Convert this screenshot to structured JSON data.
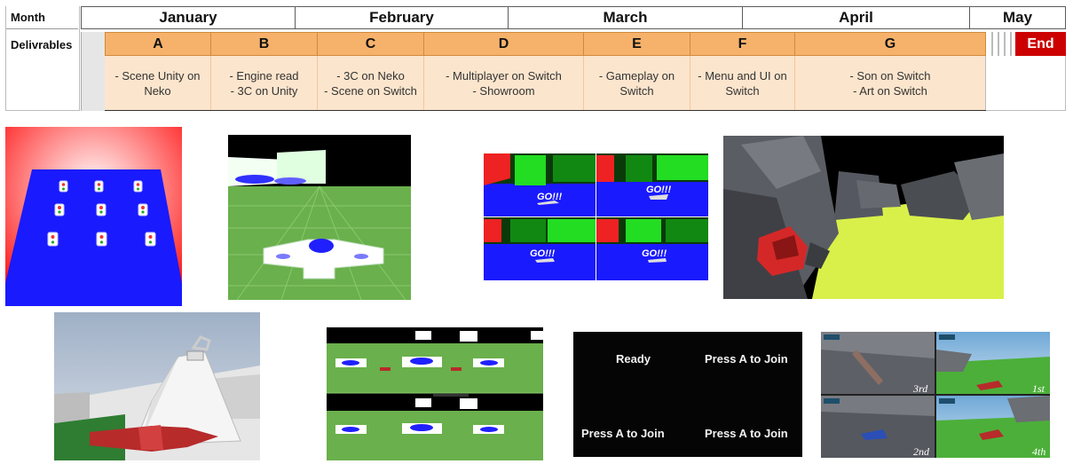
{
  "timeline": {
    "month_label": "Month",
    "deliverables_label": "Delivrables",
    "months": [
      "January",
      "February",
      "March",
      "April",
      "May"
    ],
    "deliverables": [
      {
        "letter": "A",
        "text": "- Scene Unity on\nNeko"
      },
      {
        "letter": "B",
        "text": "- Engine read\n- 3C on Unity"
      },
      {
        "letter": "C",
        "text": "- 3C on Neko\n- Scene on Switch"
      },
      {
        "letter": "D",
        "text": "- Multiplayer on Switch\n- Showroom"
      },
      {
        "letter": "E",
        "text": "- Gameplay on\nSwitch"
      },
      {
        "letter": "F",
        "text": "- Menu and UI on\nSwitch"
      },
      {
        "letter": "G",
        "text": "- Son on Switch\n- Art on Switch"
      }
    ],
    "end_label": "End"
  },
  "screenshots": {
    "split_go_labels": [
      "GO!!!",
      "GO!!!",
      "GO!!!",
      "GO!!!"
    ],
    "join_screen": {
      "ready": "Ready",
      "join_1": "Press A to Join",
      "join_2": "Press A to Join",
      "join_3": "Press A to Join"
    },
    "race_places": [
      "3rd",
      "1st",
      "2nd",
      "4th"
    ]
  },
  "colors": {
    "header_orange": "#f6b26b",
    "desc_peach": "#fce5cd",
    "end_red": "#cc0000",
    "scene_blue": "#1a1aff",
    "scene_green": "#6ab04c",
    "scene_red": "#ff1a1a",
    "lime": "#d9f04a"
  }
}
